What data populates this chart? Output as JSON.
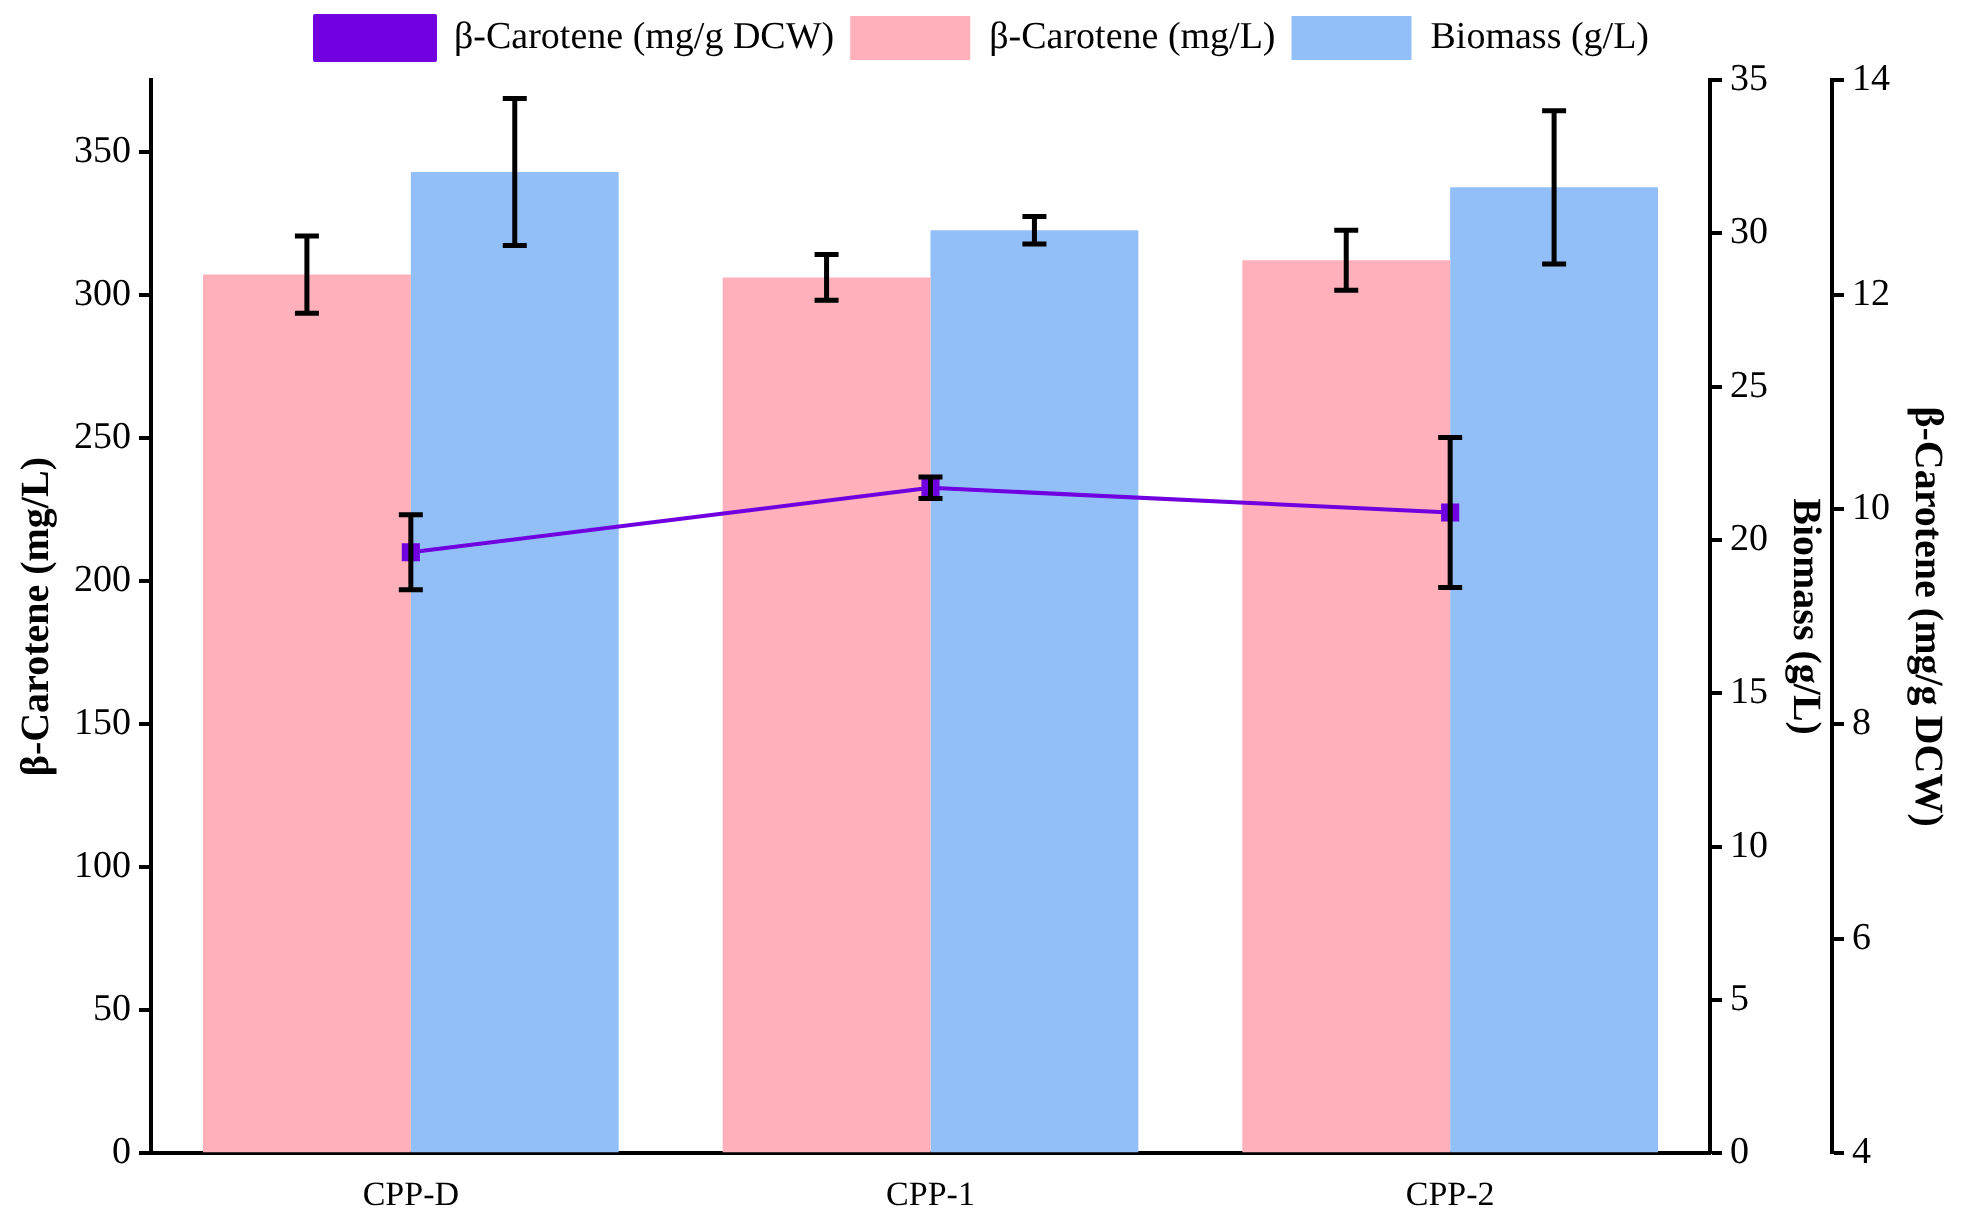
{
  "chart_data": {
    "type": "bar",
    "categories": [
      "CPP-D",
      "CPP-1",
      "CPP-2"
    ],
    "ylabel": "β-Carotene (mg/L)",
    "y2label": "Biomass (g/L)",
    "y3label": "β-Carotene (mg/g DCW)",
    "ylim": [
      0,
      375
    ],
    "yticks": [
      0,
      50,
      100,
      150,
      200,
      250,
      300,
      350
    ],
    "y2lim": [
      0,
      35
    ],
    "y2ticks": [
      0,
      5,
      10,
      15,
      20,
      25,
      30,
      35
    ],
    "y3lim": [
      4,
      14
    ],
    "y3ticks": [
      4,
      6,
      8,
      10,
      12,
      14
    ],
    "series": [
      {
        "name": "β-Carotene (mg/L)",
        "color": "#ffb0ba",
        "values": [
          307,
          306,
          312
        ],
        "errors": [
          13.5,
          8,
          10.5
        ]
      },
      {
        "name": "Biomass (g/L)",
        "color": "#92bff8",
        "axis": "y2",
        "values": [
          32.0,
          30.1,
          31.5
        ],
        "errors": [
          2.4,
          0.45,
          2.5
        ]
      },
      {
        "name": "β-Carotene (mg/g DCW)",
        "type": "line",
        "color": "#7000e0",
        "axis": "y3",
        "values": [
          9.6,
          10.2,
          9.97
        ],
        "errors": [
          0.35,
          0.1,
          0.7
        ]
      }
    ],
    "marker": "square",
    "line_style": "solid",
    "legend": "top",
    "grid": false
  }
}
